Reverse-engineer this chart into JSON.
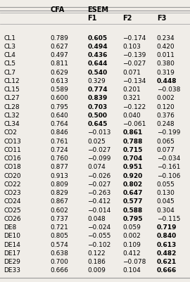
{
  "rows": [
    [
      "CL1",
      "0.789",
      "0.605",
      "−0.174",
      "0.234"
    ],
    [
      "CL3",
      "0.627",
      "0.494",
      "0.103",
      "0.420"
    ],
    [
      "CL4",
      "0.497",
      "0.436",
      "−0.139",
      "0.011"
    ],
    [
      "CL5",
      "0.811",
      "0.644",
      "−0.027",
      "0.380"
    ],
    [
      "CL7",
      "0.629",
      "0.540",
      "0.071",
      "0.319"
    ],
    [
      "CL12",
      "0.613",
      "0.329",
      "−0.134",
      "0.448"
    ],
    [
      "CL15",
      "0.589",
      "0.774",
      "0.201",
      "−0.038"
    ],
    [
      "CL27",
      "0.600",
      "0.839",
      "0.321",
      "0.002"
    ],
    [
      "CL28",
      "0.795",
      "0.703",
      "−0.122",
      "0.120"
    ],
    [
      "CL32",
      "0.640",
      "0.500",
      "0.040",
      "0.376"
    ],
    [
      "CL34",
      "0.764",
      "0.645",
      "−0.061",
      "0.248"
    ],
    [
      "CO2",
      "0.846",
      "−0.013",
      "0.861",
      "−0.199"
    ],
    [
      "CO13",
      "0.761",
      "0.025",
      "0.788",
      "0.065"
    ],
    [
      "CO11",
      "0.724",
      "−0.027",
      "0.715",
      "0.077"
    ],
    [
      "CO16",
      "0.760",
      "−0.099",
      "0.704",
      "−0.034"
    ],
    [
      "CO18",
      "0.877",
      "0.074",
      "0.951",
      "−0.161"
    ],
    [
      "CO20",
      "0.913",
      "−0.026",
      "0.920",
      "−0.106"
    ],
    [
      "CO22",
      "0.809",
      "−0.027",
      "0.802",
      "0.055"
    ],
    [
      "CO23",
      "0.829",
      "−0.263",
      "0.647",
      "0.130"
    ],
    [
      "CO24",
      "0.867",
      "−0.412",
      "0.577",
      "0.045"
    ],
    [
      "CO25",
      "0.602",
      "−0.014",
      "0.588",
      "0.304"
    ],
    [
      "CO26",
      "0.737",
      "0.048",
      "0.795",
      "−0.115"
    ],
    [
      "DE8",
      "0.721",
      "−0.024",
      "0.059",
      "0.719"
    ],
    [
      "DE10",
      "0.805",
      "−0.055",
      "0.002",
      "0.840"
    ],
    [
      "DE14",
      "0.574",
      "−0.102",
      "0.109",
      "0.613"
    ],
    [
      "DE17",
      "0.638",
      "0.122",
      "0.412",
      "0.482"
    ],
    [
      "DE29",
      "0.700",
      "0.186",
      "−0.078",
      "0.621"
    ],
    [
      "DE33",
      "0.666",
      "0.009",
      "0.104",
      "0.666"
    ]
  ],
  "bold_cells": {
    "0": [
      2
    ],
    "1": [
      2
    ],
    "2": [
      2
    ],
    "3": [
      2
    ],
    "4": [
      2
    ],
    "5": [
      4
    ],
    "6": [
      2
    ],
    "7": [
      2
    ],
    "8": [
      2
    ],
    "9": [
      2
    ],
    "10": [
      2
    ],
    "11": [
      3
    ],
    "12": [
      3
    ],
    "13": [
      3
    ],
    "14": [
      3
    ],
    "15": [
      3
    ],
    "16": [
      3
    ],
    "17": [
      3
    ],
    "18": [
      3
    ],
    "19": [
      3
    ],
    "20": [
      3
    ],
    "21": [
      3
    ],
    "22": [
      4
    ],
    "23": [
      4
    ],
    "24": [
      4
    ],
    "25": [
      4
    ],
    "26": [
      4
    ],
    "27": [
      4
    ]
  },
  "bg_color": "#f0ede8",
  "line_color": "#999999",
  "font_size": 6.5,
  "header_font_size": 7.0
}
